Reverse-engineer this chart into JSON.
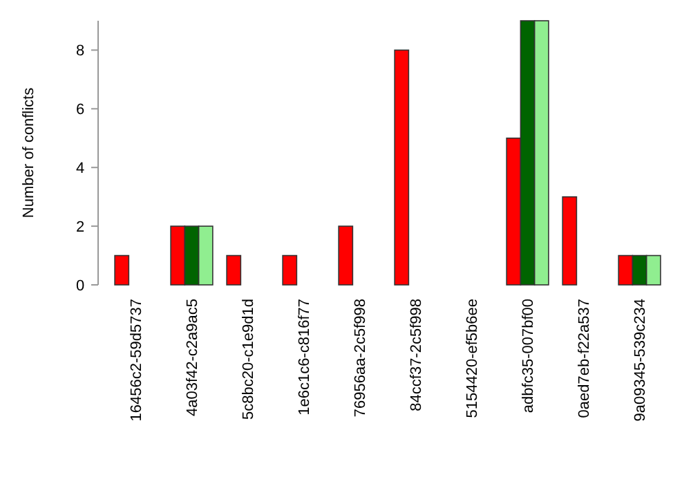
{
  "chart_data": {
    "type": "bar",
    "ylabel": "Number of conflicts",
    "categories": [
      "16456c2-59d5737",
      "4a03f42-c2a9ac5",
      "5c8bc20-c1e9d1d",
      "1e6c1c6-c816f77",
      "76956aa-2c5f998",
      "84ccf37-2c5f998",
      "5154420-ef5b6ee",
      "adbfc35-007bf00",
      "0aed7eb-f22a537",
      "9a09345-539c234"
    ],
    "series": [
      {
        "color": "#ff0000",
        "values": [
          1,
          2,
          1,
          1,
          2,
          8,
          0,
          5,
          3,
          1
        ]
      },
      {
        "color": "#006400",
        "values": [
          0,
          2,
          0,
          0,
          0,
          0,
          0,
          9,
          0,
          1
        ]
      },
      {
        "color": "#90ee90",
        "values": [
          0,
          2,
          0,
          0,
          0,
          0,
          0,
          9,
          0,
          1
        ]
      }
    ],
    "ylim": [
      0,
      9
    ],
    "yticks": [
      0,
      2,
      4,
      6,
      8
    ],
    "grid": false
  }
}
